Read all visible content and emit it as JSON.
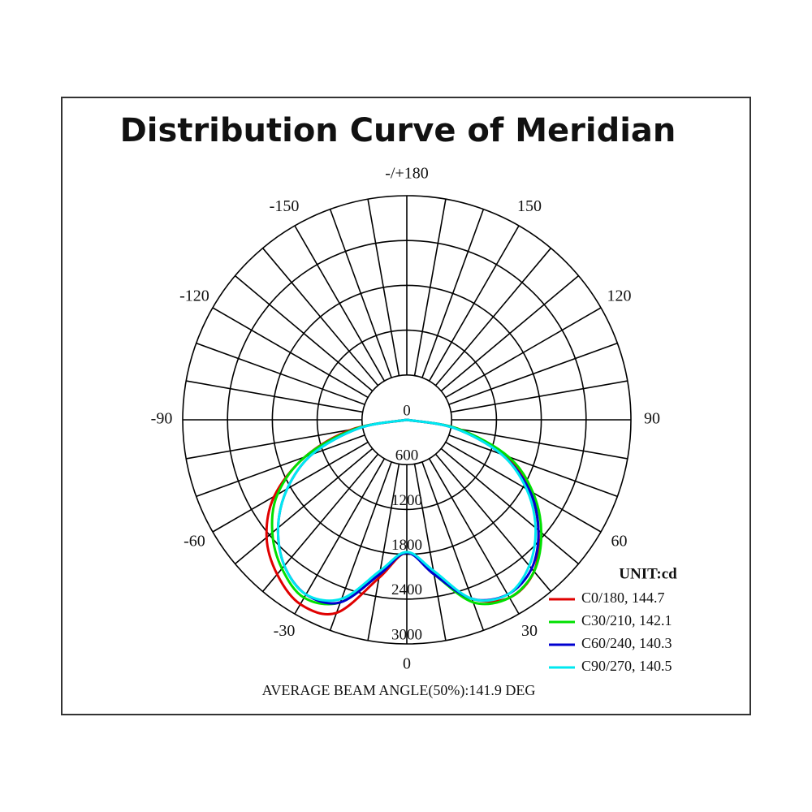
{
  "chart_data": {
    "type": "polar",
    "title": "Distribution Curve of Meridian",
    "annotation": "AVERAGE BEAM ANGLE(50%):141.9 DEG",
    "legend_title": "UNIT:cd",
    "x": [
      -90,
      -80,
      -70,
      -60,
      -50,
      -40,
      -30,
      -20,
      -10,
      0,
      10,
      20,
      30,
      40,
      50,
      60,
      70,
      80,
      90
    ],
    "series": [
      {
        "name": "C0/180, 144.7",
        "color": "#e00000",
        "values": [
          0,
          750,
          1450,
          2050,
          2450,
          2700,
          2850,
          2750,
          2150,
          1780,
          2100,
          2550,
          2750,
          2650,
          2300,
          1900,
          1400,
          700,
          0
        ]
      },
      {
        "name": "C30/210, 142.1",
        "color": "#00e000",
        "values": [
          0,
          700,
          1450,
          2000,
          2350,
          2600,
          2750,
          2600,
          2100,
          1780,
          2100,
          2600,
          2750,
          2650,
          2350,
          1950,
          1450,
          700,
          0
        ]
      },
      {
        "name": "C60/240, 140.3",
        "color": "#0000d0",
        "values": [
          0,
          650,
          1350,
          1850,
          2250,
          2550,
          2700,
          2600,
          2100,
          1780,
          2100,
          2550,
          2700,
          2600,
          2300,
          1900,
          1350,
          650,
          0
        ]
      },
      {
        "name": "C90/270, 140.5",
        "color": "#00e8f0",
        "values": [
          0,
          650,
          1350,
          1850,
          2250,
          2550,
          2700,
          2550,
          2050,
          1770,
          2050,
          2550,
          2700,
          2550,
          2250,
          1850,
          1350,
          650,
          0
        ]
      }
    ],
    "xticks": [
      -150,
      -120,
      -90,
      -60,
      -30,
      0,
      30,
      60,
      90,
      120,
      150,
      {
        "value": 180,
        "label": "-/+180"
      }
    ],
    "angle_grid_step": 10,
    "rlim": [
      0,
      3000
    ],
    "rticks": [
      0,
      600,
      1200,
      1800,
      2400,
      3000
    ],
    "legend_position": "lower right"
  }
}
